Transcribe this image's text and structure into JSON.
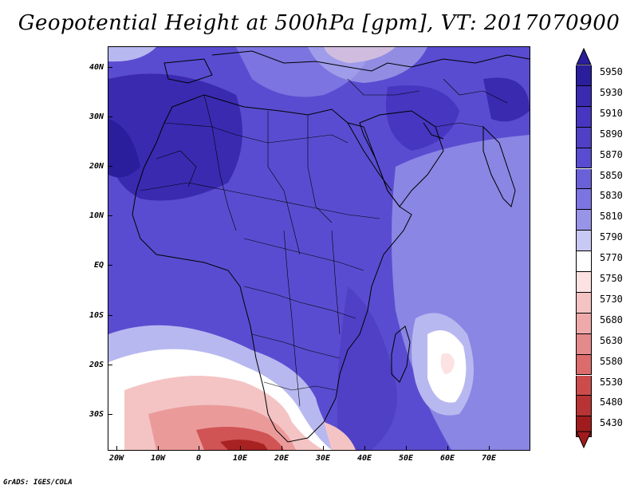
{
  "title": "Geopotential Height at 500hPa [gpm], VT: 2017070900",
  "footer": "GrADS: IGES/COLA",
  "map": {
    "lat_ticks": [
      "40N",
      "30N",
      "20N",
      "10N",
      "EQ",
      "10S",
      "20S",
      "30S"
    ],
    "lon_ticks": [
      "20W",
      "10W",
      "0",
      "10E",
      "20E",
      "30E",
      "40E",
      "50E",
      "60E",
      "70E"
    ],
    "colors": {
      "deep_blue": "#3a2ab0",
      "blue": "#5a4cd0",
      "mid_blue": "#6a60d8",
      "light_blue": "#8a86e4",
      "pale_blue": "#b8b8f0",
      "white": "#ffffff",
      "pink": "#f4c4c4",
      "salmon": "#eb9a9a",
      "red": "#d05454",
      "dark_red": "#a82222"
    }
  },
  "colorbar": {
    "levels": [
      "5950",
      "5930",
      "5910",
      "5890",
      "5870",
      "5850",
      "5830",
      "5810",
      "5790",
      "5770",
      "5750",
      "5730",
      "5680",
      "5630",
      "5580",
      "5530",
      "5480",
      "5430"
    ],
    "colors": [
      "#2a1e9c",
      "#3a2ab0",
      "#4636c0",
      "#5040c6",
      "#5a4cd0",
      "#6a60d8",
      "#7c74e0",
      "#9894e8",
      "#c8c8f4",
      "#ffffff",
      "#fce2e2",
      "#f4c4c4",
      "#eeaaaa",
      "#e58a8a",
      "#dc6c6c",
      "#cc4c4c",
      "#b83434",
      "#a01c1c"
    ]
  }
}
